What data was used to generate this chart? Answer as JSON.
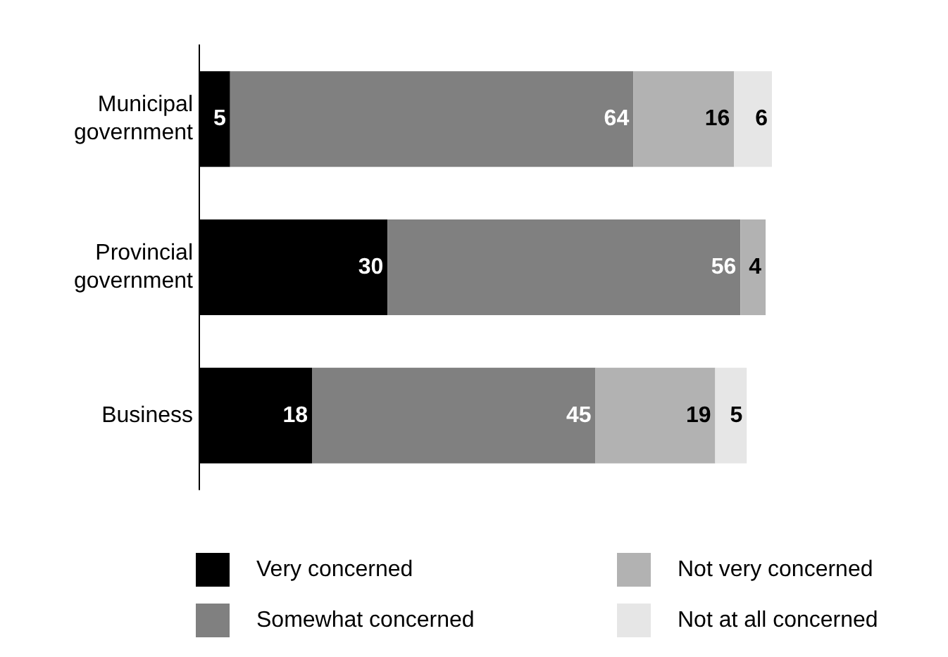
{
  "chart_data": {
    "type": "bar",
    "orientation": "horizontal",
    "stacked": true,
    "data_labels": true,
    "legend": "bottom",
    "tick_labels": "y",
    "categories": [
      "Municipal government",
      "Provincial government",
      "Business"
    ],
    "series": [
      {
        "name": "Very concerned",
        "color": "#000000",
        "values": [
          5,
          30,
          18
        ]
      },
      {
        "name": "Somewhat concerned",
        "color": "#808080",
        "values": [
          64,
          56,
          45
        ]
      },
      {
        "name": "Not very concerned",
        "color": "#b2b2b2",
        "values": [
          16,
          4,
          19
        ]
      },
      {
        "name": "Not at all concerned",
        "color": "#e6e6e6",
        "values": [
          6,
          null,
          5
        ]
      }
    ]
  }
}
